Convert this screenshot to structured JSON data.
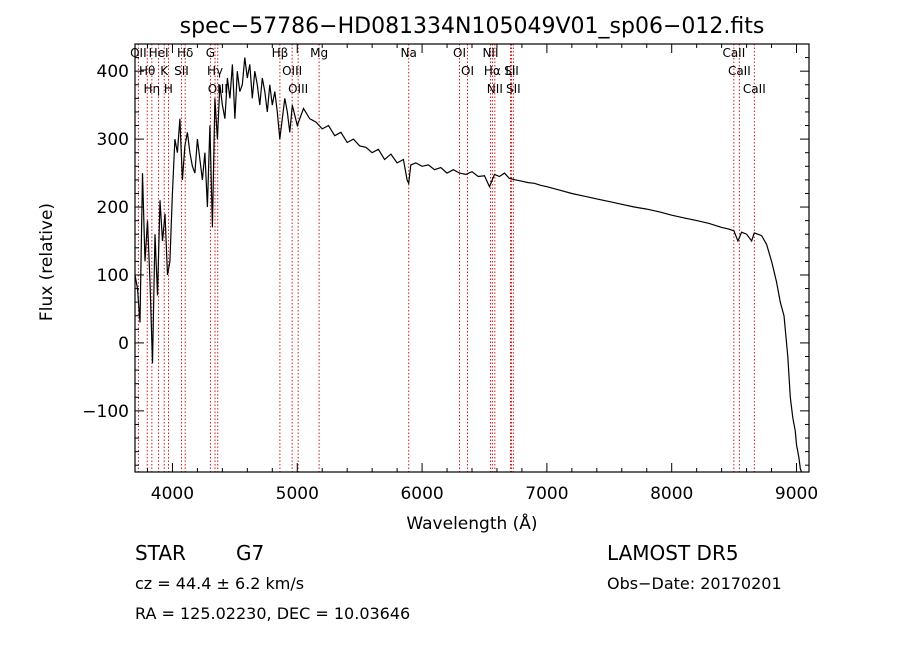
{
  "chart_data": {
    "type": "line",
    "title": "spec−57786−HD081334N105049V01_sp06−012.fits",
    "xlabel": "Wavelength (Å)",
    "ylabel": "Flux (relative)",
    "xlim": [
      3700,
      9100
    ],
    "ylim": [
      -190,
      440
    ],
    "x_ticks": [
      4000,
      5000,
      6000,
      7000,
      8000,
      9000
    ],
    "x_tick_labels": [
      "4000",
      "5000",
      "6000",
      "7000",
      "8000",
      "9000"
    ],
    "y_ticks": [
      -100,
      0,
      100,
      200,
      300,
      400
    ],
    "y_tick_labels": [
      "−100",
      "0",
      "100",
      "200",
      "300",
      "400"
    ],
    "grid": false,
    "series": [
      {
        "color": "#000000",
        "x": [
          3700,
          3720,
          3740,
          3760,
          3780,
          3800,
          3820,
          3840,
          3860,
          3880,
          3900,
          3920,
          3940,
          3960,
          3980,
          4000,
          4020,
          4040,
          4060,
          4080,
          4100,
          4120,
          4140,
          4160,
          4180,
          4200,
          4220,
          4240,
          4260,
          4280,
          4300,
          4320,
          4340,
          4360,
          4380,
          4400,
          4420,
          4440,
          4460,
          4480,
          4500,
          4520,
          4540,
          4560,
          4580,
          4600,
          4620,
          4640,
          4660,
          4680,
          4700,
          4720,
          4740,
          4760,
          4780,
          4800,
          4820,
          4840,
          4860,
          4880,
          4900,
          4920,
          4940,
          4960,
          4980,
          5000,
          5050,
          5100,
          5150,
          5200,
          5250,
          5300,
          5350,
          5400,
          5450,
          5500,
          5550,
          5600,
          5650,
          5700,
          5750,
          5800,
          5850,
          5880,
          5893,
          5910,
          5950,
          6000,
          6050,
          6100,
          6150,
          6200,
          6250,
          6300,
          6350,
          6400,
          6450,
          6500,
          6540,
          6563,
          6580,
          6620,
          6660,
          6700,
          6750,
          6800,
          6850,
          6900,
          6950,
          7000,
          7100,
          7200,
          7300,
          7400,
          7500,
          7600,
          7700,
          7800,
          7900,
          8000,
          8100,
          8200,
          8300,
          8400,
          8450,
          8498,
          8530,
          8542,
          8560,
          8600,
          8640,
          8662,
          8690,
          8720,
          8760,
          8800,
          8840,
          8870,
          8900,
          8930,
          8950,
          8970,
          8990,
          9000,
          9010,
          9020,
          9030,
          9040
        ],
        "y": [
          100,
          80,
          30,
          250,
          120,
          180,
          90,
          -30,
          160,
          70,
          210,
          150,
          190,
          100,
          120,
          220,
          300,
          280,
          330,
          240,
          290,
          310,
          280,
          260,
          250,
          300,
          270,
          240,
          280,
          200,
          320,
          170,
          360,
          300,
          380,
          350,
          330,
          390,
          360,
          410,
          330,
          400,
          370,
          380,
          420,
          390,
          410,
          360,
          400,
          380,
          350,
          390,
          370,
          340,
          380,
          350,
          370,
          340,
          300,
          330,
          360,
          340,
          310,
          350,
          335,
          320,
          345,
          330,
          325,
          315,
          320,
          305,
          310,
          295,
          300,
          290,
          288,
          280,
          285,
          270,
          278,
          265,
          270,
          240,
          235,
          262,
          265,
          260,
          262,
          255,
          258,
          250,
          255,
          250,
          248,
          252,
          245,
          246,
          230,
          240,
          248,
          245,
          250,
          242,
          240,
          238,
          236,
          235,
          232,
          230,
          225,
          220,
          216,
          212,
          208,
          204,
          200,
          197,
          193,
          188,
          184,
          180,
          176,
          170,
          168,
          165,
          150,
          155,
          163,
          160,
          150,
          162,
          160,
          158,
          145,
          120,
          90,
          60,
          40,
          -20,
          -80,
          -110,
          -130,
          -150,
          -160,
          -170,
          -185,
          -190
        ]
      }
    ],
    "line_markers": [
      {
        "wave": 3727,
        "label": "OII"
      },
      {
        "wave": 3798,
        "label": "Hθ"
      },
      {
        "wave": 3835,
        "label": "Hη"
      },
      {
        "wave": 3889,
        "label": "HeI"
      },
      {
        "wave": 3934,
        "label": "K"
      },
      {
        "wave": 3968,
        "label": "H"
      },
      {
        "wave": 4072,
        "label": "SII"
      },
      {
        "wave": 4102,
        "label": "Hδ"
      },
      {
        "wave": 4304,
        "label": "G"
      },
      {
        "wave": 4341,
        "label": "Hγ"
      },
      {
        "wave": 4363,
        "label": "OIII"
      },
      {
        "wave": 4861,
        "label": "Hβ"
      },
      {
        "wave": 4959,
        "label": "OIII"
      },
      {
        "wave": 5007,
        "label": "OIII"
      },
      {
        "wave": 5175,
        "label": "Mg"
      },
      {
        "wave": 5893,
        "label": "Na"
      },
      {
        "wave": 6300,
        "label": "OI"
      },
      {
        "wave": 6364,
        "label": "OI"
      },
      {
        "wave": 6548,
        "label": "NII"
      },
      {
        "wave": 6563,
        "label": "Hα"
      },
      {
        "wave": 6583,
        "label": "NII"
      },
      {
        "wave": 6708,
        "label": "Li"
      },
      {
        "wave": 6716,
        "label": "SII"
      },
      {
        "wave": 6731,
        "label": "SII"
      },
      {
        "wave": 8498,
        "label": "CaII"
      },
      {
        "wave": 8542,
        "label": "CaII"
      },
      {
        "wave": 8662,
        "label": "CaII"
      }
    ],
    "marker_color": "#cc0000"
  },
  "info": {
    "class_label": "STAR",
    "subclass_label": "G7",
    "redshift_text": "cz = 44.4 ± 6.2 km/s",
    "coords_text": "RA = 125.02230, DEC =  10.03646",
    "survey_text": "LAMOST  DR5",
    "obs_date_text": "Obs−Date: 20170201"
  }
}
